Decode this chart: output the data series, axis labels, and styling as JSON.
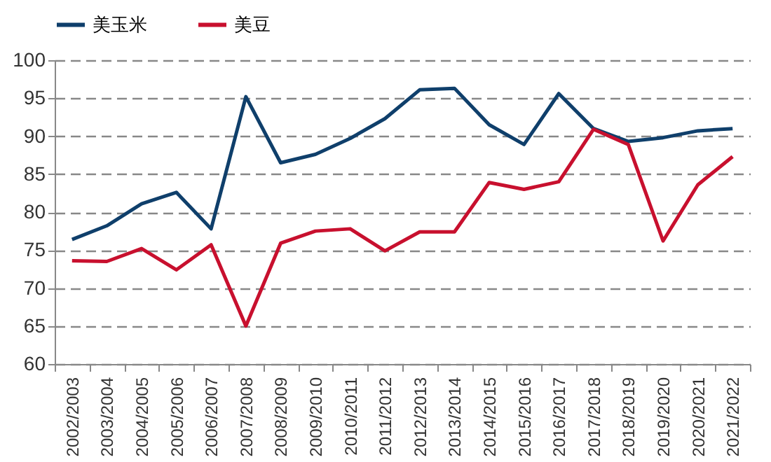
{
  "chart_data": {
    "type": "line",
    "categories": [
      "2002/2003",
      "2003/2004",
      "2004/2005",
      "2005/2006",
      "2006/2007",
      "2007/2008",
      "2008/2009",
      "2009/2010",
      "2010/2011",
      "2011/2012",
      "2012/2013",
      "2013/2014",
      "2014/2015",
      "2015/2016",
      "2016/2017",
      "2017/2018",
      "2018/2019",
      "2019/2020",
      "2020/2021",
      "2021/2022"
    ],
    "series": [
      {
        "name": "美玉米",
        "color": "#0f3f6b",
        "values": [
          76.4,
          78.2,
          81.1,
          82.6,
          77.8,
          95.2,
          86.5,
          87.6,
          89.7,
          92.3,
          96.1,
          96.3,
          91.5,
          88.9,
          95.6,
          91.0,
          89.3,
          89.8,
          90.7,
          91.0
        ]
      },
      {
        "name": "美豆",
        "color": "#c8102e",
        "values": [
          73.6,
          73.5,
          75.2,
          72.4,
          75.7,
          65.0,
          75.9,
          77.5,
          77.8,
          74.9,
          77.4,
          77.4,
          83.9,
          83.0,
          84.0,
          90.9,
          88.9,
          76.2,
          83.6,
          87.3
        ]
      }
    ],
    "ylim": [
      60,
      100
    ],
    "yticks": [
      60,
      65,
      70,
      75,
      80,
      85,
      90,
      95,
      100
    ],
    "grid": "y",
    "legend": "top",
    "line_style": "solid",
    "marker": "none"
  }
}
